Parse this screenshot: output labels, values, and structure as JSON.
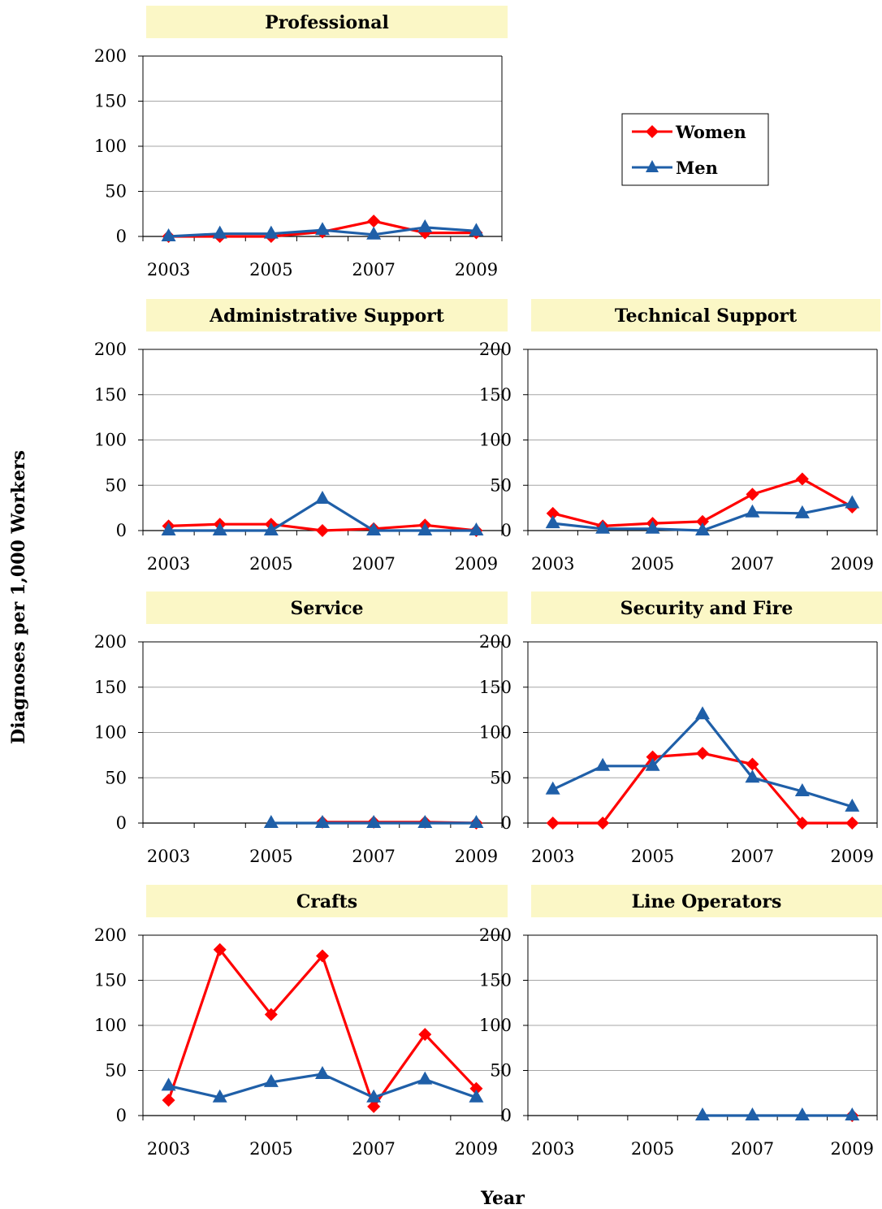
{
  "figure": {
    "ylabel": "Diagnoses per 1,000 Workers",
    "xlabel": "Year",
    "colors": {
      "women": "#ff0000",
      "men": "#1f5fa8",
      "title_bg": "#fbf7c6",
      "grid": "#a6a6a6"
    }
  },
  "legend": {
    "items": [
      {
        "name": "Women",
        "color": "#ff0000",
        "marker": "diamond"
      },
      {
        "name": "Men",
        "color": "#1f5fa8",
        "marker": "triangle"
      }
    ]
  },
  "chart_data": [
    {
      "type": "line",
      "title": "Professional",
      "x": [
        2003,
        2004,
        2005,
        2006,
        2007,
        2008,
        2009
      ],
      "xticks": [
        "2003",
        "2005",
        "2007",
        "2009"
      ],
      "yticks": [
        "0",
        "50",
        "100",
        "150",
        "200"
      ],
      "ylim": [
        0,
        200
      ],
      "grid": true,
      "series": [
        {
          "name": "Women",
          "values": [
            0,
            0,
            0,
            5,
            17,
            4,
            4
          ]
        },
        {
          "name": "Men",
          "values": [
            0,
            3,
            3,
            7,
            2,
            10,
            6
          ]
        }
      ]
    },
    {
      "type": "line",
      "title": "Administrative Support",
      "x": [
        2003,
        2004,
        2005,
        2006,
        2007,
        2008,
        2009
      ],
      "xticks": [
        "2003",
        "2005",
        "2007",
        "2009"
      ],
      "yticks": [
        "0",
        "50",
        "100",
        "150",
        "200"
      ],
      "ylim": [
        0,
        200
      ],
      "grid": true,
      "series": [
        {
          "name": "Women",
          "values": [
            5,
            7,
            7,
            0,
            2,
            6,
            0
          ]
        },
        {
          "name": "Men",
          "values": [
            0,
            0,
            0,
            35,
            0,
            0,
            0
          ]
        }
      ]
    },
    {
      "type": "line",
      "title": "Technical Support",
      "x": [
        2003,
        2004,
        2005,
        2006,
        2007,
        2008,
        2009
      ],
      "xticks": [
        "2003",
        "2005",
        "2007",
        "2009"
      ],
      "yticks": [
        "0",
        "50",
        "100",
        "150",
        "200"
      ],
      "ylim": [
        0,
        200
      ],
      "grid": true,
      "series": [
        {
          "name": "Women",
          "values": [
            19,
            5,
            8,
            10,
            40,
            57,
            26
          ]
        },
        {
          "name": "Men",
          "values": [
            8,
            2,
            2,
            0,
            20,
            19,
            30
          ]
        }
      ]
    },
    {
      "type": "line",
      "title": "Service",
      "x": [
        2003,
        2004,
        2005,
        2006,
        2007,
        2008,
        2009
      ],
      "xticks": [
        "2003",
        "2005",
        "2007",
        "2009"
      ],
      "yticks": [
        "0",
        "50",
        "100",
        "150",
        "200"
      ],
      "ylim": [
        0,
        200
      ],
      "grid": true,
      "series": [
        {
          "name": "Women",
          "values": [
            null,
            null,
            null,
            1,
            1,
            1,
            0
          ]
        },
        {
          "name": "Men",
          "values": [
            null,
            null,
            0,
            0,
            0,
            0,
            0
          ]
        }
      ]
    },
    {
      "type": "line",
      "title": "Security and Fire",
      "x": [
        2003,
        2004,
        2005,
        2006,
        2007,
        2008,
        2009
      ],
      "xticks": [
        "2003",
        "2005",
        "2007",
        "2009"
      ],
      "yticks": [
        "0",
        "50",
        "100",
        "150",
        "200"
      ],
      "ylim": [
        0,
        200
      ],
      "grid": true,
      "series": [
        {
          "name": "Women",
          "values": [
            0,
            0,
            73,
            77,
            65,
            0,
            0
          ]
        },
        {
          "name": "Men",
          "values": [
            37,
            63,
            63,
            120,
            50,
            35,
            18
          ]
        }
      ]
    },
    {
      "type": "line",
      "title": "Crafts",
      "x": [
        2003,
        2004,
        2005,
        2006,
        2007,
        2008,
        2009
      ],
      "xticks": [
        "2003",
        "2005",
        "2007",
        "2009"
      ],
      "yticks": [
        "0",
        "50",
        "100",
        "150",
        "200"
      ],
      "ylim": [
        0,
        200
      ],
      "grid": true,
      "series": [
        {
          "name": "Women",
          "values": [
            17,
            184,
            112,
            177,
            10,
            90,
            30
          ]
        },
        {
          "name": "Men",
          "values": [
            33,
            20,
            37,
            46,
            20,
            40,
            20
          ]
        }
      ]
    },
    {
      "type": "line",
      "title": "Line Operators",
      "x": [
        2003,
        2004,
        2005,
        2006,
        2007,
        2008,
        2009
      ],
      "xticks": [
        "2003",
        "2005",
        "2007",
        "2009"
      ],
      "yticks": [
        "0",
        "50",
        "100",
        "150",
        "200"
      ],
      "ylim": [
        0,
        200
      ],
      "grid": true,
      "series": [
        {
          "name": "Women",
          "values": [
            null,
            null,
            null,
            null,
            null,
            null,
            0
          ]
        },
        {
          "name": "Men",
          "values": [
            null,
            null,
            null,
            0,
            0,
            0,
            0
          ]
        }
      ]
    }
  ]
}
